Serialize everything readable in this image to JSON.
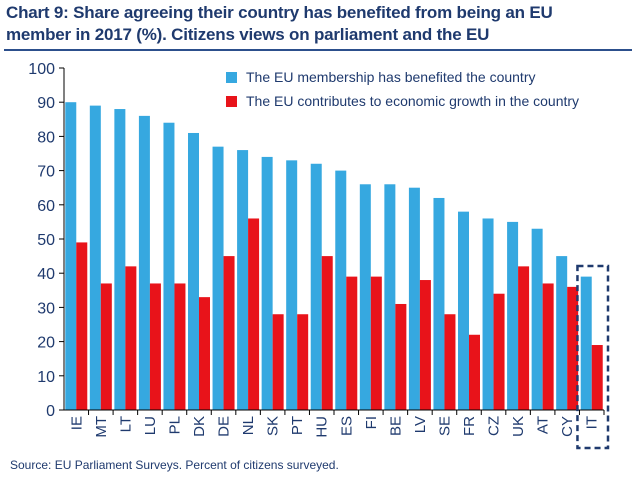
{
  "title_line1": "Chart 9: Share agreeing their country has benefited from being an EU",
  "title_line2": "member in 2017  (%). Citizens views on parliament and the EU",
  "source": "Source:  EU Parliament Surveys. Percent of citizens  surveyed.",
  "colors": {
    "series1": "#36a8e0",
    "series2": "#e8131a",
    "highlight": "#1f3a6e",
    "text": "#1f3a6e",
    "axis": "#000000"
  },
  "chart_data": {
    "type": "bar",
    "title": "Chart 9: Share agreeing their country has benefited from being an EU member in 2017  (%). Citizens views on parliament and the EU",
    "xlabel": "",
    "ylabel": "",
    "ylim": [
      0,
      100
    ],
    "yticks": [
      0,
      10,
      20,
      30,
      40,
      50,
      60,
      70,
      80,
      90,
      100
    ],
    "grid": false,
    "legend_position": "top-right",
    "categories": [
      "IE",
      "MT",
      "LT",
      "LU",
      "PL",
      "DK",
      "DE",
      "NL",
      "SK",
      "PT",
      "HU",
      "ES",
      "FI",
      "BE",
      "LV",
      "SE",
      "FR",
      "CZ",
      "UK",
      "AT",
      "CY",
      "IT"
    ],
    "series": [
      {
        "name": "The EU membership has benefited the country",
        "values": [
          90,
          89,
          88,
          86,
          84,
          81,
          77,
          76,
          74,
          73,
          72,
          70,
          66,
          66,
          65,
          62,
          58,
          56,
          55,
          53,
          45,
          39
        ]
      },
      {
        "name": "The EU contributes to economic growth in the country",
        "values": [
          49,
          37,
          42,
          37,
          37,
          33,
          45,
          56,
          28,
          28,
          45,
          39,
          39,
          31,
          38,
          28,
          22,
          34,
          42,
          37,
          36,
          19
        ]
      }
    ],
    "highlight_category": "IT"
  }
}
